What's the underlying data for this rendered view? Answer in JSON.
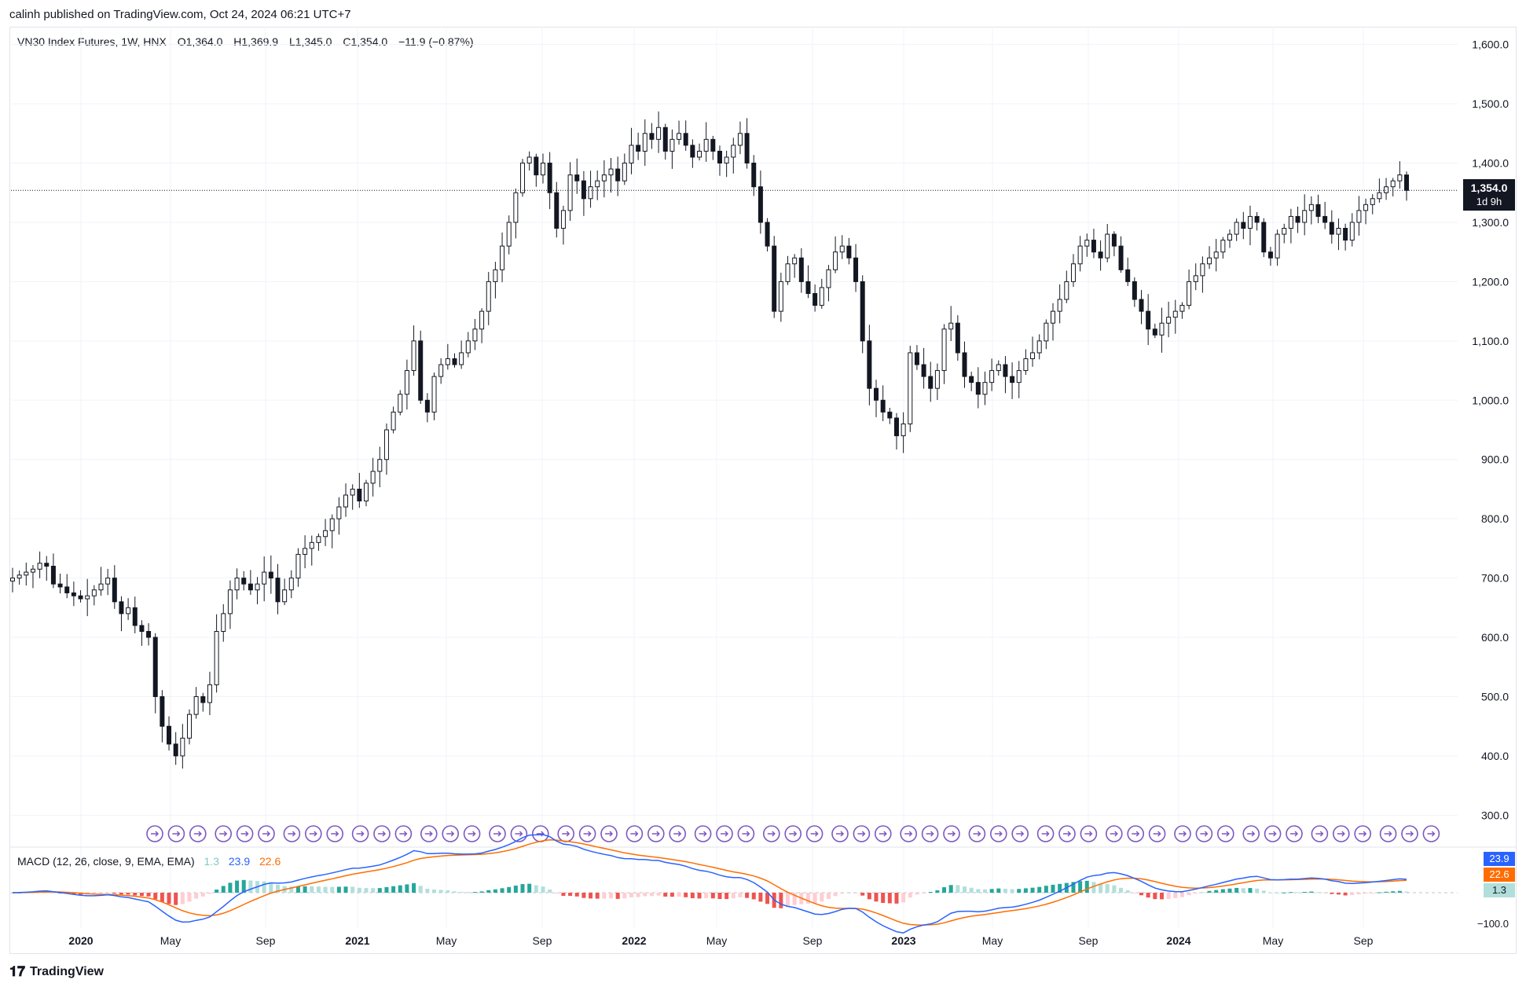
{
  "header": {
    "published": "calinh published on TradingView.com, Oct 24, 2024 06:21 UTC+7"
  },
  "legend": {
    "symbol": "VN30 Index Futures, 1W, HNX",
    "open": "O1,364.0",
    "high": "H1,369.9",
    "low": "L1,345.0",
    "close": "C1,354.0",
    "change": "−11.9 (−0.87%)"
  },
  "price_tag": {
    "price": "1,354.0",
    "countdown": "1d 9h"
  },
  "macd": {
    "label": "MACD (12, 26, close, 9, EMA, EMA)",
    "hist_value": "1.3",
    "macd_value": "23.9",
    "signal_value": "22.6",
    "axis_label": "−100.0"
  },
  "footer": {
    "brand": "TradingView"
  },
  "colors": {
    "up": "#ffffff",
    "down": "#131722",
    "macd_line": "#2962ff",
    "signal_line": "#ff6d00",
    "hist_pos": "#26a69a",
    "hist_neg": "#ef5350",
    "event_marker": "#7e57c2"
  },
  "chart_data": {
    "type": "candlestick",
    "title": "VN30 Index Futures, 1W, HNX",
    "y_axis": {
      "min": 270,
      "max": 1630,
      "ticks": [
        "1,600.0",
        "1,500.0",
        "1,400.0",
        "1,300.0",
        "1,200.0",
        "1,100.0",
        "1,000.0",
        "900.0",
        "800.0",
        "700.0",
        "600.0",
        "500.0",
        "400.0",
        "300.0"
      ]
    },
    "x_axis_labels": [
      "2020",
      "May",
      "Sep",
      "2021",
      "May",
      "Sep",
      "2022",
      "May",
      "Sep",
      "2023",
      "May",
      "Sep",
      "2024",
      "May",
      "Sep"
    ],
    "last_price": 1354.0,
    "weekly_closes": [
      700,
      705,
      710,
      715,
      725,
      720,
      690,
      685,
      675,
      670,
      665,
      670,
      680,
      690,
      700,
      660,
      640,
      650,
      620,
      610,
      600,
      500,
      450,
      420,
      400,
      430,
      470,
      500,
      490,
      520,
      610,
      640,
      680,
      700,
      690,
      680,
      690,
      710,
      700,
      660,
      680,
      700,
      740,
      750,
      760,
      770,
      780,
      800,
      820,
      840,
      850,
      830,
      860,
      880,
      900,
      950,
      980,
      1010,
      1050,
      1100,
      1000,
      980,
      1040,
      1060,
      1070,
      1060,
      1080,
      1100,
      1120,
      1150,
      1200,
      1220,
      1260,
      1300,
      1350,
      1400,
      1410,
      1380,
      1400,
      1350,
      1290,
      1320,
      1380,
      1370,
      1340,
      1360,
      1370,
      1380,
      1390,
      1370,
      1400,
      1430,
      1420,
      1450,
      1440,
      1460,
      1420,
      1440,
      1450,
      1430,
      1410,
      1420,
      1440,
      1420,
      1400,
      1410,
      1430,
      1450,
      1400,
      1360,
      1300,
      1260,
      1150,
      1200,
      1230,
      1240,
      1200,
      1180,
      1160,
      1190,
      1220,
      1250,
      1260,
      1240,
      1200,
      1100,
      1020,
      1000,
      980,
      970,
      940,
      960,
      1080,
      1060,
      1040,
      1020,
      1050,
      1120,
      1130,
      1080,
      1040,
      1030,
      1010,
      1030,
      1050,
      1060,
      1040,
      1030,
      1050,
      1070,
      1080,
      1100,
      1130,
      1150,
      1170,
      1200,
      1230,
      1260,
      1270,
      1250,
      1240,
      1280,
      1260,
      1220,
      1200,
      1170,
      1150,
      1120,
      1110,
      1130,
      1140,
      1150,
      1160,
      1200,
      1210,
      1230,
      1240,
      1250,
      1270,
      1280,
      1300,
      1290,
      1310,
      1300,
      1250,
      1240,
      1280,
      1290,
      1310,
      1300,
      1320,
      1330,
      1310,
      1300,
      1280,
      1290,
      1270,
      1300,
      1320,
      1330,
      1340,
      1350,
      1360,
      1370,
      1380,
      1354
    ],
    "series": [
      {
        "name": "MACD",
        "last": 23.9
      },
      {
        "name": "Signal",
        "last": 22.6
      },
      {
        "name": "Histogram",
        "last": 1.3
      }
    ]
  }
}
